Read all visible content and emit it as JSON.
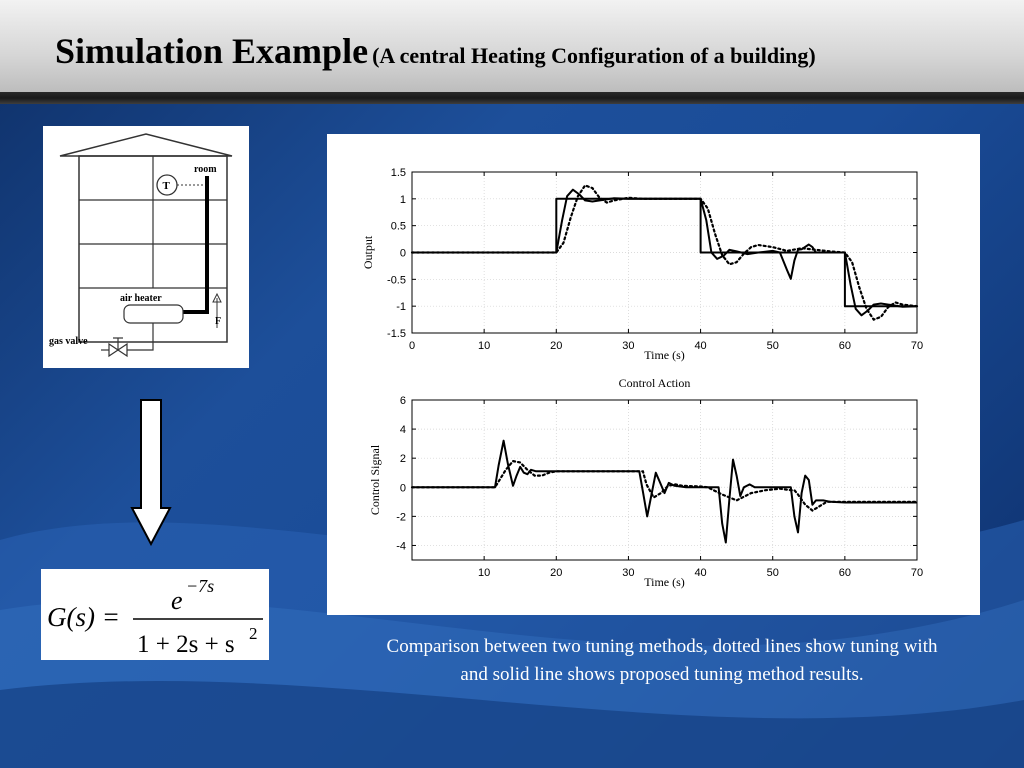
{
  "slide": {
    "title_main": "Simulation Example",
    "title_sub": "(A central Heating Configuration of a building)",
    "caption_line1": "Comparison between two tuning methods, dotted lines show tuning with",
    "caption_line2": "and solid line shows proposed tuning method results."
  },
  "building": {
    "room_label": "room",
    "sensor_label": "T",
    "heater_label": "air heater",
    "flow_label": "F",
    "valve_label": "gas valve"
  },
  "formula": {
    "lhs": "G(s) =",
    "numerator_base": "e",
    "numerator_exponent": "−7s",
    "denominator": "1 + 2s + s",
    "denominator_power": "2"
  },
  "chart_data": [
    {
      "type": "line",
      "title": "",
      "xlabel": "Time (s)",
      "ylabel": "Output",
      "xlim": [
        0,
        70
      ],
      "ylim": [
        -1.5,
        1.5
      ],
      "xticks": [
        "0",
        "10",
        "20",
        "30",
        "40",
        "50",
        "60",
        "70"
      ],
      "yticks": [
        "1.5",
        "1",
        "0.5",
        "0",
        "-0.5",
        "-1",
        "-1.5"
      ],
      "grid": true,
      "series": [
        {
          "style": "setpoint-solid",
          "x": [
            0,
            20,
            20,
            40,
            40,
            60,
            60,
            70
          ],
          "y": [
            0,
            0,
            1,
            1,
            0,
            0,
            -1,
            -1
          ]
        },
        {
          "style": "solid",
          "x": [
            0,
            20,
            20.8,
            21.5,
            22.3,
            23.2,
            24.0,
            25.0,
            26.5,
            28,
            30,
            32,
            35,
            40,
            40.8,
            41.5,
            42.3,
            43.2,
            44.0,
            45.0,
            46.5,
            48,
            50,
            51,
            52,
            52.5,
            53.0,
            53.5,
            54,
            55,
            55.5,
            56,
            56.8,
            58,
            60,
            60.8,
            61.5,
            62.3,
            63.2,
            64.0,
            65.0,
            66.5,
            68,
            70
          ],
          "y": [
            0,
            0,
            0.6,
            1.05,
            1.17,
            1.08,
            0.97,
            0.95,
            0.98,
            1.01,
            1.0,
            1.0,
            1.0,
            1.0,
            0.6,
            0.0,
            -0.12,
            -0.06,
            0.05,
            0.02,
            -0.03,
            0.0,
            0.03,
            0.0,
            -0.33,
            -0.49,
            -0.15,
            0.05,
            0.06,
            0.15,
            0.1,
            0.0,
            0.0,
            0.0,
            0.0,
            -0.6,
            -1.05,
            -1.17,
            -1.08,
            -0.97,
            -0.95,
            -0.98,
            -1.01,
            -1.0
          ]
        },
        {
          "style": "dotted",
          "x": [
            0,
            20,
            21,
            22,
            23,
            24,
            25,
            26,
            27,
            28,
            30,
            32,
            35,
            40,
            41,
            42,
            43,
            44,
            45,
            46,
            47,
            48,
            50,
            52,
            54,
            56,
            58,
            60,
            61,
            62,
            63,
            64,
            65,
            66,
            67,
            68,
            70
          ],
          "y": [
            0,
            0,
            0.18,
            0.65,
            1.05,
            1.25,
            1.2,
            1.02,
            0.93,
            0.97,
            1.02,
            1.0,
            1.0,
            1.0,
            0.82,
            0.35,
            -0.05,
            -0.22,
            -0.18,
            -0.02,
            0.1,
            0.14,
            0.1,
            0.03,
            0.08,
            0.05,
            0.02,
            0.0,
            -0.18,
            -0.65,
            -1.05,
            -1.25,
            -1.2,
            -1.02,
            -0.93,
            -0.97,
            -1.0
          ]
        }
      ]
    },
    {
      "type": "line",
      "title": "Control Action",
      "xlabel": "Time (s)",
      "ylabel": "Control Signal",
      "xlim": [
        0,
        70
      ],
      "ylim": [
        -5,
        6
      ],
      "xticks": [
        "10",
        "20",
        "30",
        "40",
        "50",
        "60",
        "70"
      ],
      "yticks": [
        "6",
        "4",
        "2",
        "0",
        "-2",
        "-4"
      ],
      "grid": true,
      "series": [
        {
          "style": "solid",
          "x": [
            0,
            11.5,
            12.0,
            12.7,
            13.3,
            14.0,
            14.5,
            15.0,
            15.5,
            16.0,
            16.5,
            17.2,
            18.0,
            19.0,
            20,
            31.5,
            32.0,
            32.6,
            33.2,
            33.8,
            34.4,
            35.0,
            35.6,
            36.4,
            37.2,
            38,
            40,
            42.5,
            43.0,
            43.5,
            44.0,
            44.5,
            45.0,
            45.5,
            46.0,
            46.8,
            47.5,
            49.0,
            52.5,
            53.0,
            53.5,
            54.0,
            54.5,
            55.0,
            55.5,
            56.0,
            57.0,
            58.0,
            60,
            70
          ],
          "y": [
            0,
            0,
            1.5,
            3.2,
            1.6,
            0.1,
            0.8,
            1.4,
            1.0,
            0.9,
            1.2,
            1.1,
            1.1,
            1.1,
            1.1,
            1.1,
            -0.3,
            -2.0,
            -0.5,
            1.0,
            0.3,
            -0.4,
            0.3,
            0.1,
            0.05,
            0.0,
            0.0,
            0.0,
            -2.5,
            -3.8,
            -0.8,
            1.9,
            0.8,
            -0.6,
            0.0,
            0.2,
            0.0,
            0.0,
            0.0,
            -2.0,
            -3.1,
            -0.4,
            0.8,
            0.5,
            -1.2,
            -0.9,
            -0.9,
            -1.0,
            -1.05,
            -1.05
          ]
        },
        {
          "style": "dotted",
          "x": [
            0,
            11.5,
            12.0,
            13.0,
            14.0,
            15.0,
            16.0,
            17.0,
            18.0,
            19.0,
            20,
            32,
            32.5,
            33.5,
            34.5,
            35.5,
            36.5,
            37.5,
            40,
            41,
            43,
            45,
            47,
            49,
            51,
            52.5,
            53,
            53.5,
            54.5,
            55.5,
            56.5,
            57.5,
            59,
            60,
            70
          ],
          "y": [
            0,
            0,
            0.4,
            1.2,
            1.8,
            1.7,
            1.2,
            0.8,
            0.8,
            1.0,
            1.1,
            1.1,
            0.2,
            -0.7,
            -0.4,
            0.1,
            0.2,
            0.1,
            0.05,
            0.0,
            -0.5,
            -0.9,
            -0.4,
            -0.2,
            -0.1,
            -0.2,
            -0.2,
            -0.5,
            -1.2,
            -1.6,
            -1.3,
            -1.0,
            -1.0,
            -1.0,
            -1.0
          ]
        }
      ]
    }
  ]
}
